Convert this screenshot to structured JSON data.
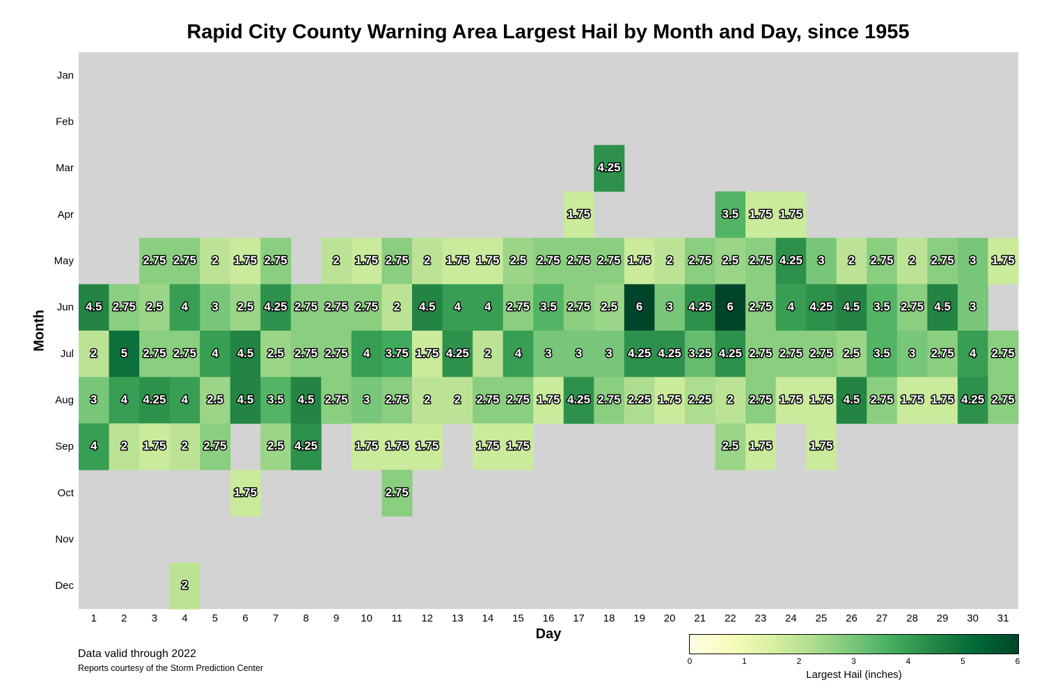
{
  "title": "Rapid City County Warning Area Largest Hail by Month and Day, since 1955",
  "notes": {
    "line1": "Data valid through 2022",
    "line2": "Reports courtesy of the Storm Prediction Center"
  },
  "colorbar": {
    "label": "Largest Hail (inches)",
    "ticks": [
      "0",
      "1",
      "2",
      "3",
      "4",
      "5",
      "6"
    ],
    "range": [
      0,
      6
    ],
    "colormap": "YlGn",
    "stops": [
      "#ffffe5",
      "#f7fcb9",
      "#d9f0a3",
      "#addd8e",
      "#78c679",
      "#41ab5d",
      "#238443",
      "#006837",
      "#004529"
    ]
  },
  "colors": {
    "no_data": "#d3d3d3"
  },
  "chart_data": {
    "type": "heatmap",
    "title": "Rapid City County Warning Area Largest Hail by Month and Day, since 1955",
    "xlabel": "Day",
    "ylabel": "Month",
    "x": [
      "1",
      "2",
      "3",
      "4",
      "5",
      "6",
      "7",
      "8",
      "9",
      "10",
      "11",
      "12",
      "13",
      "14",
      "15",
      "16",
      "17",
      "18",
      "19",
      "20",
      "21",
      "22",
      "23",
      "24",
      "25",
      "26",
      "27",
      "28",
      "29",
      "30",
      "31"
    ],
    "y": [
      "Jan",
      "Feb",
      "Mar",
      "Apr",
      "May",
      "Jun",
      "Jul",
      "Aug",
      "Sep",
      "Oct",
      "Nov",
      "Dec"
    ],
    "values": [
      [
        null,
        null,
        null,
        null,
        null,
        null,
        null,
        null,
        null,
        null,
        null,
        null,
        null,
        null,
        null,
        null,
        null,
        null,
        null,
        null,
        null,
        null,
        null,
        null,
        null,
        null,
        null,
        null,
        null,
        null,
        null
      ],
      [
        null,
        null,
        null,
        null,
        null,
        null,
        null,
        null,
        null,
        null,
        null,
        null,
        null,
        null,
        null,
        null,
        null,
        null,
        null,
        null,
        null,
        null,
        null,
        null,
        null,
        null,
        null,
        null,
        null,
        null,
        null
      ],
      [
        null,
        null,
        null,
        null,
        null,
        null,
        null,
        null,
        null,
        null,
        null,
        null,
        null,
        null,
        null,
        null,
        null,
        4.25,
        null,
        null,
        null,
        null,
        null,
        null,
        null,
        null,
        null,
        null,
        null,
        null,
        null
      ],
      [
        null,
        null,
        null,
        null,
        null,
        null,
        null,
        null,
        null,
        null,
        null,
        null,
        null,
        null,
        null,
        null,
        1.75,
        null,
        null,
        null,
        null,
        3.5,
        1.75,
        1.75,
        null,
        null,
        null,
        null,
        null,
        null,
        null
      ],
      [
        null,
        null,
        2.75,
        2.75,
        2.0,
        1.75,
        2.75,
        null,
        2.0,
        1.75,
        2.75,
        2.0,
        1.75,
        1.75,
        2.5,
        2.75,
        2.75,
        2.75,
        1.75,
        2.0,
        2.75,
        2.5,
        2.75,
        4.25,
        3.0,
        2.0,
        2.75,
        2.0,
        2.75,
        3.0,
        1.75
      ],
      [
        4.5,
        2.75,
        2.5,
        4.0,
        3.0,
        2.5,
        4.25,
        2.75,
        2.75,
        2.75,
        2.0,
        4.5,
        4.0,
        4.0,
        2.75,
        3.5,
        2.75,
        2.5,
        6.0,
        3.0,
        4.25,
        6.0,
        2.75,
        4.0,
        4.25,
        4.5,
        3.5,
        2.75,
        4.5,
        3.0,
        null
      ],
      [
        2.0,
        5.0,
        2.75,
        2.75,
        4.0,
        4.5,
        2.5,
        2.75,
        2.75,
        4.0,
        3.75,
        1.75,
        4.25,
        2.0,
        4.0,
        3.0,
        3.0,
        3.0,
        4.25,
        4.25,
        3.25,
        4.25,
        2.75,
        2.75,
        2.75,
        2.5,
        3.5,
        3.0,
        2.75,
        4.0,
        2.75
      ],
      [
        3.0,
        4.0,
        4.25,
        4.0,
        2.5,
        4.5,
        3.5,
        4.5,
        2.75,
        3.0,
        2.75,
        2.0,
        2.0,
        2.75,
        2.75,
        1.75,
        4.25,
        2.75,
        2.25,
        1.75,
        2.25,
        2.0,
        2.75,
        1.75,
        1.75,
        4.5,
        2.75,
        1.75,
        1.75,
        4.25,
        2.75
      ],
      [
        4.0,
        2.0,
        1.75,
        2.0,
        2.75,
        null,
        2.5,
        4.25,
        null,
        1.75,
        1.75,
        1.75,
        null,
        1.75,
        1.75,
        null,
        null,
        null,
        null,
        null,
        null,
        2.5,
        1.75,
        null,
        1.75,
        null,
        null,
        null,
        null,
        null,
        null
      ],
      [
        null,
        null,
        null,
        null,
        null,
        1.75,
        null,
        null,
        null,
        null,
        2.75,
        null,
        null,
        null,
        null,
        null,
        null,
        null,
        null,
        null,
        null,
        null,
        null,
        null,
        null,
        null,
        null,
        null,
        null,
        null,
        null
      ],
      [
        null,
        null,
        null,
        null,
        null,
        null,
        null,
        null,
        null,
        null,
        null,
        null,
        null,
        null,
        null,
        null,
        null,
        null,
        null,
        null,
        null,
        null,
        null,
        null,
        null,
        null,
        null,
        null,
        null,
        null,
        null
      ],
      [
        null,
        null,
        null,
        2.0,
        null,
        null,
        null,
        null,
        null,
        null,
        null,
        null,
        null,
        null,
        null,
        null,
        null,
        null,
        null,
        null,
        null,
        null,
        null,
        null,
        null,
        null,
        null,
        null,
        null,
        null,
        null
      ]
    ],
    "zlim": [
      0,
      6
    ]
  }
}
